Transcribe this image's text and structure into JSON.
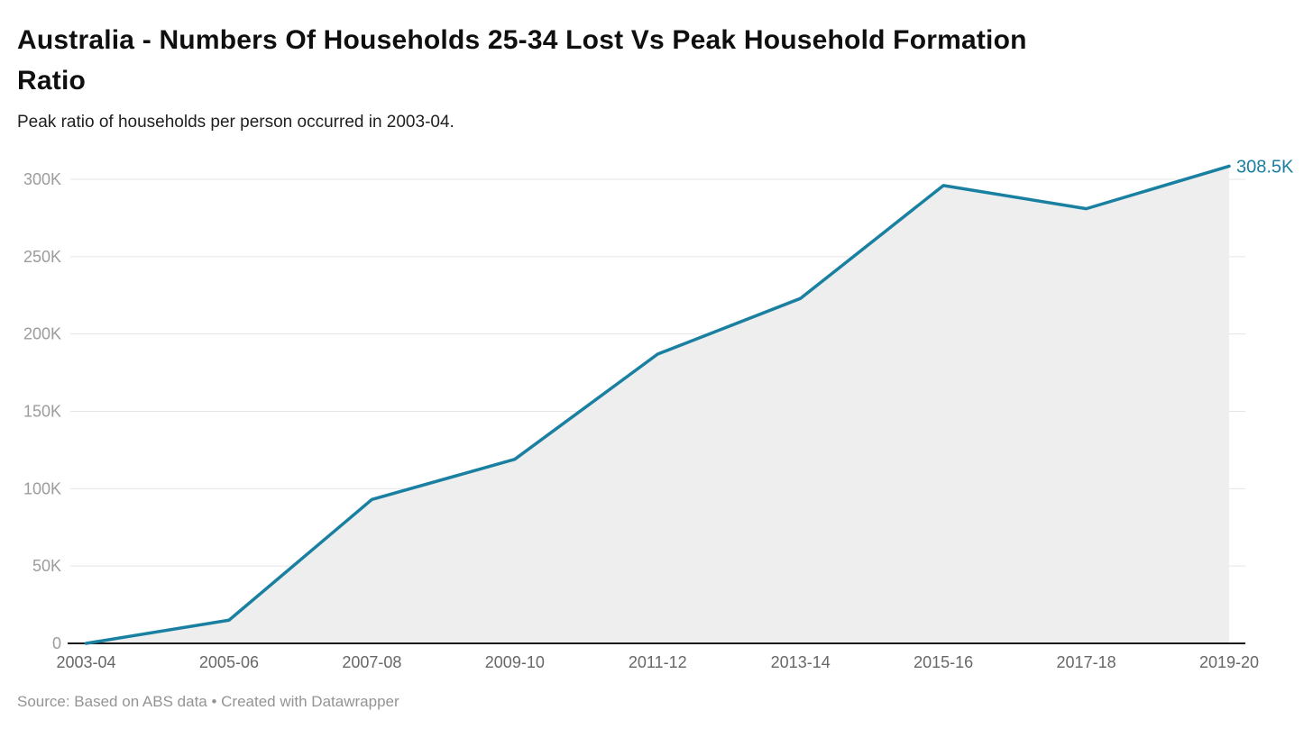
{
  "header": {
    "title_line1": "Australia - Numbers Of Households 25-34 Lost Vs Peak Household Formation",
    "title_line2": "Ratio",
    "subtitle": "Peak ratio of households per person occurred in 2003-04."
  },
  "footer": {
    "source": "Source: Based on ABS data • Created with Datawrapper"
  },
  "colors": {
    "line": "#1a80a1",
    "area": "#eeeeee",
    "grid": "#e5e5e5",
    "baseline": "#1b1b1b",
    "y_tick_text": "#9c9c9c",
    "x_tick_text": "#676767",
    "end_label": "#1a80a1"
  },
  "chart_data": {
    "type": "area",
    "title": "Australia - Numbers Of Households 25-34 Lost Vs Peak Household Formation Ratio",
    "subtitle": "Peak ratio of households per person occurred in 2003-04.",
    "source": "Source: Based on ABS data • Created with Datawrapper",
    "categories": [
      "2003-04",
      "2005-06",
      "2007-08",
      "2009-10",
      "2011-12",
      "2013-14",
      "2015-16",
      "2017-18",
      "2019-20"
    ],
    "series": [
      {
        "name": "Households 25-34 lost",
        "values": [
          0,
          15000,
          93000,
          119000,
          187000,
          223000,
          296000,
          281000,
          308500
        ]
      }
    ],
    "end_label": "308.5K",
    "xlabel": "",
    "ylabel": "",
    "ylim": [
      0,
      310000
    ],
    "y_ticks": [
      {
        "value": 0,
        "label": "0"
      },
      {
        "value": 50000,
        "label": "50K"
      },
      {
        "value": 100000,
        "label": "100K"
      },
      {
        "value": 150000,
        "label": "150K"
      },
      {
        "value": 200000,
        "label": "200K"
      },
      {
        "value": 250000,
        "label": "250K"
      },
      {
        "value": 300000,
        "label": "300K"
      }
    ],
    "grid": true,
    "legend_position": "none"
  }
}
